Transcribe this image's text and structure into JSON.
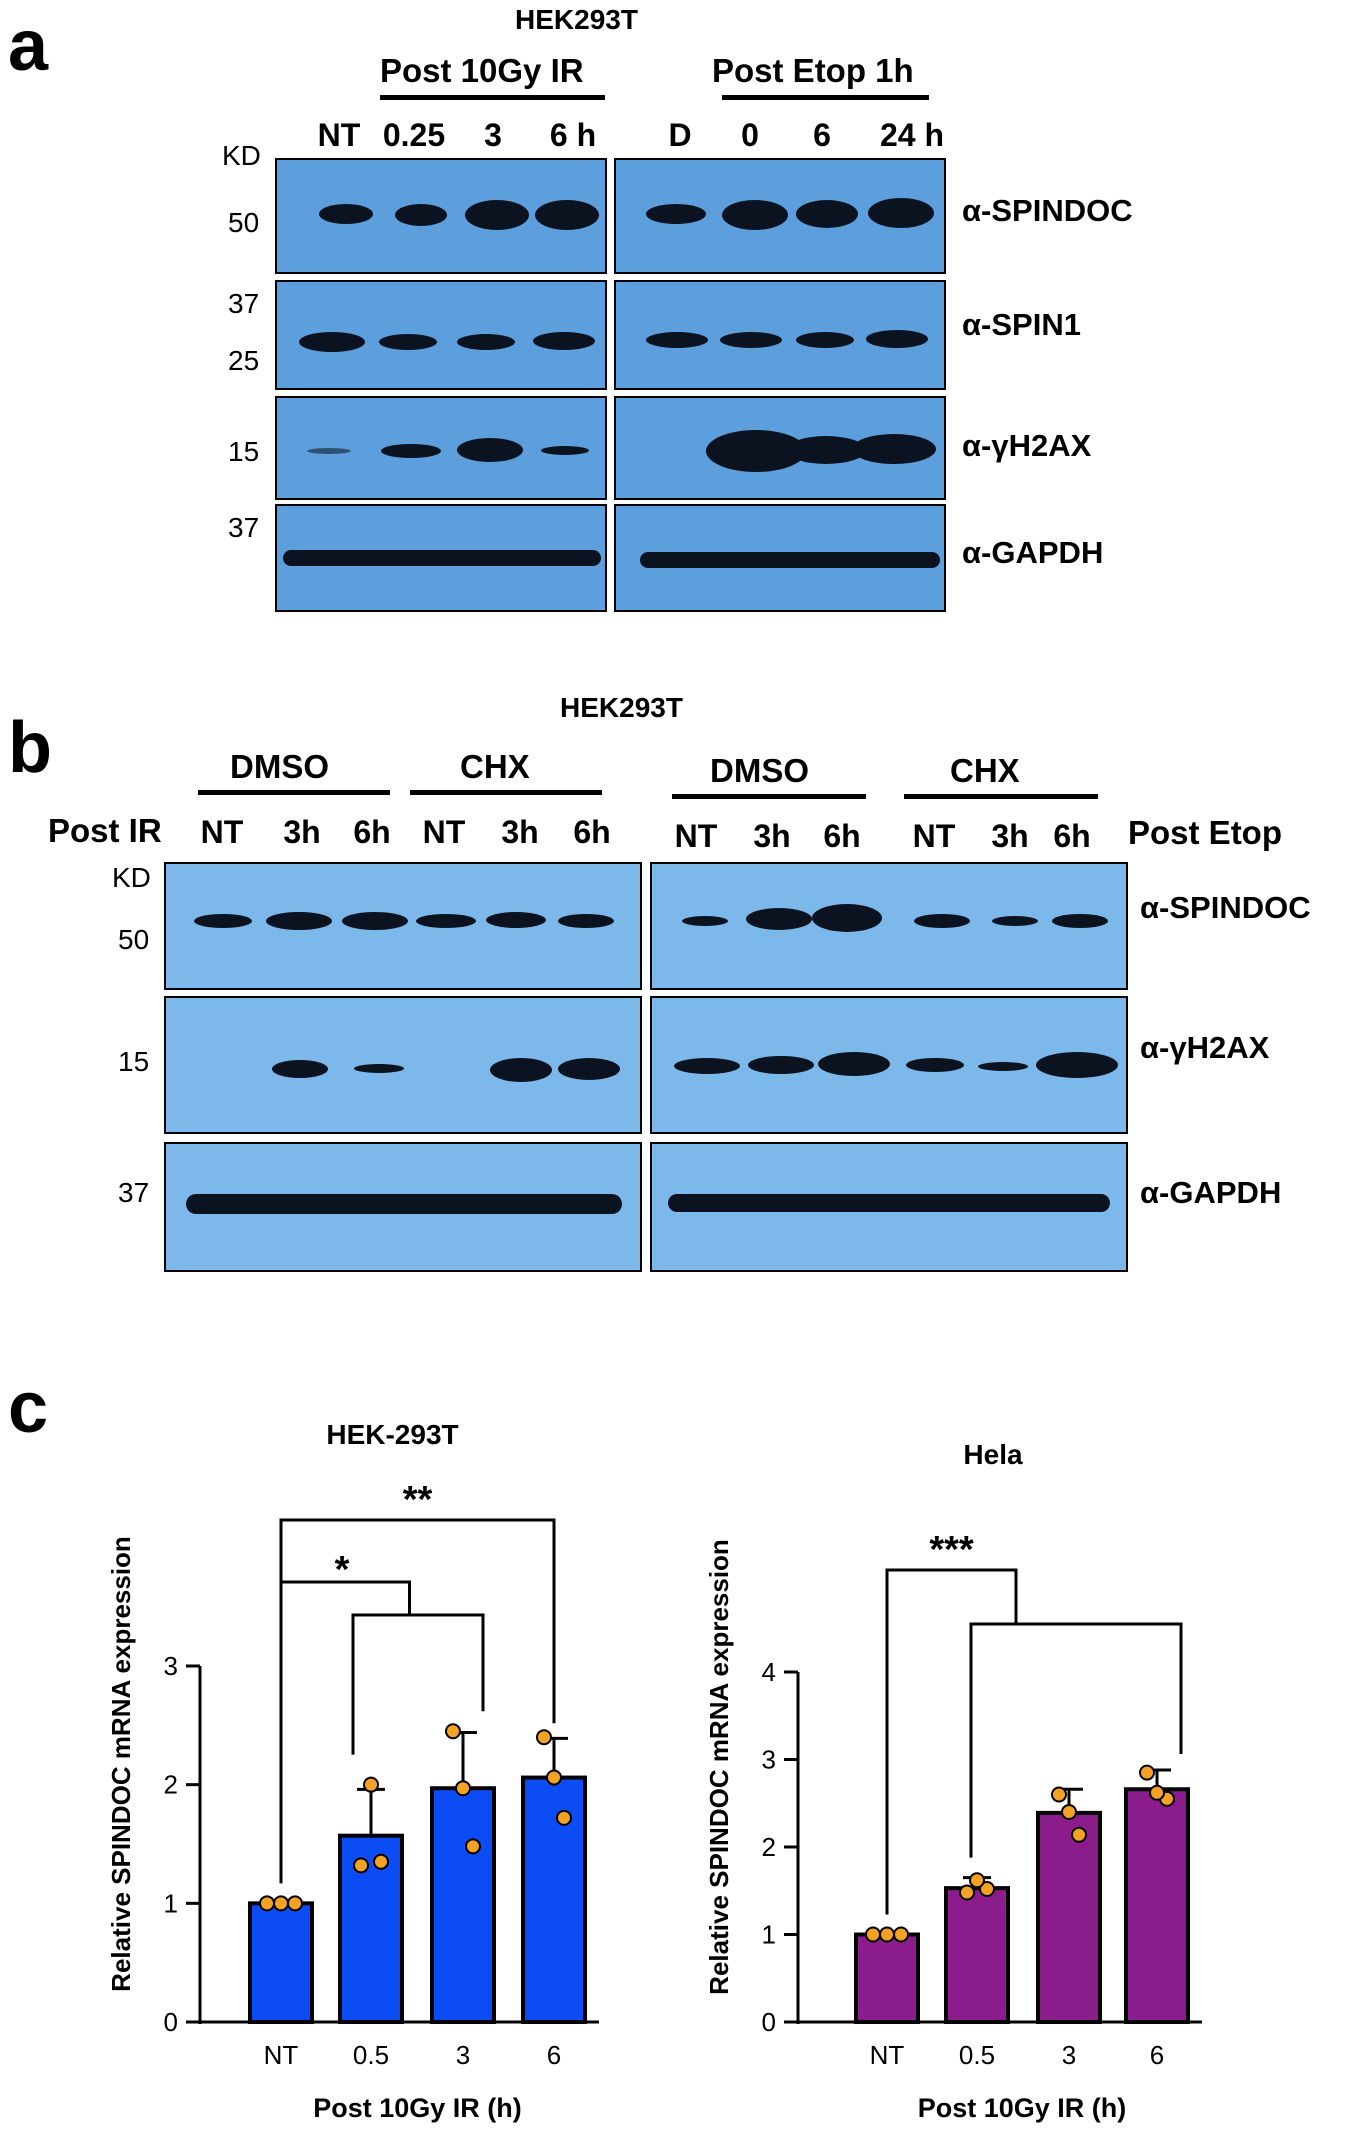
{
  "panel_labels": {
    "a": "a",
    "b": "b",
    "c": "c"
  },
  "panel_a": {
    "cell_line": "HEK293T",
    "group_left": "Post 10Gy IR",
    "group_right": "Post Etop 1h",
    "lanes_left": [
      "NT",
      "0.25",
      "3",
      "6 h"
    ],
    "lanes_right": [
      "D",
      "0",
      "6",
      "24  h"
    ],
    "kd_label": "KD",
    "mw_markers": [
      "50",
      "37",
      "25",
      "15",
      "37"
    ],
    "antibodies": [
      "α-SPINDOC",
      "α-SPIN1",
      "α-γH2AX",
      "α-GAPDH"
    ]
  },
  "panel_b": {
    "cell_line": "HEK293T",
    "groups": [
      "DMSO",
      "CHX",
      "DMSO",
      "CHX"
    ],
    "row_left_label": "Post IR",
    "row_right_label": "Post Etop",
    "lanes": [
      "NT",
      "3h",
      "6h",
      "NT",
      "3h",
      "6h",
      "NT",
      "3h",
      "6h",
      "NT",
      "3h",
      "6h"
    ],
    "kd_label": "KD",
    "mw_markers": [
      "50",
      "15",
      "37"
    ],
    "antibodies": [
      "α-SPINDOC",
      "α-γH2AX",
      "α-GAPDH"
    ]
  },
  "chart_data": [
    {
      "type": "bar",
      "title": "HEK-293T",
      "xlabel": "Post 10Gy IR (h)",
      "ylabel": "Relative SPINDOC mRNA expression",
      "categories": [
        "NT",
        "0.5",
        "3",
        "6"
      ],
      "values": [
        1.0,
        1.57,
        1.97,
        2.06
      ],
      "errors": [
        0.0,
        0.39,
        0.47,
        0.33
      ],
      "points": [
        [
          1.0,
          1.0,
          1.0
        ],
        [
          1.32,
          1.35,
          2.0
        ],
        [
          2.45,
          1.48,
          1.97
        ],
        [
          2.4,
          1.72,
          2.06
        ]
      ],
      "ylim": [
        0,
        3
      ],
      "yticks": [
        "0",
        "1",
        "2",
        "3"
      ],
      "color": "#0b4cf5",
      "significance": [
        "*",
        "**"
      ]
    },
    {
      "type": "bar",
      "title": "Hela",
      "xlabel": "Post 10Gy IR (h)",
      "ylabel": "Relative SPINDOC mRNA expression",
      "categories": [
        "NT",
        "0.5",
        "3",
        "6"
      ],
      "values": [
        1.0,
        1.53,
        2.39,
        2.66
      ],
      "errors": [
        0.0,
        0.12,
        0.27,
        0.22
      ],
      "points": [
        [
          1.0,
          1.0,
          1.0
        ],
        [
          1.48,
          1.52,
          1.62
        ],
        [
          2.6,
          2.14,
          2.4
        ],
        [
          2.85,
          2.55,
          2.62
        ]
      ],
      "ylim": [
        0,
        4
      ],
      "yticks": [
        "0",
        "1",
        "2",
        "3",
        "4"
      ],
      "color": "#8a1c8c",
      "significance": [
        "***"
      ]
    }
  ]
}
